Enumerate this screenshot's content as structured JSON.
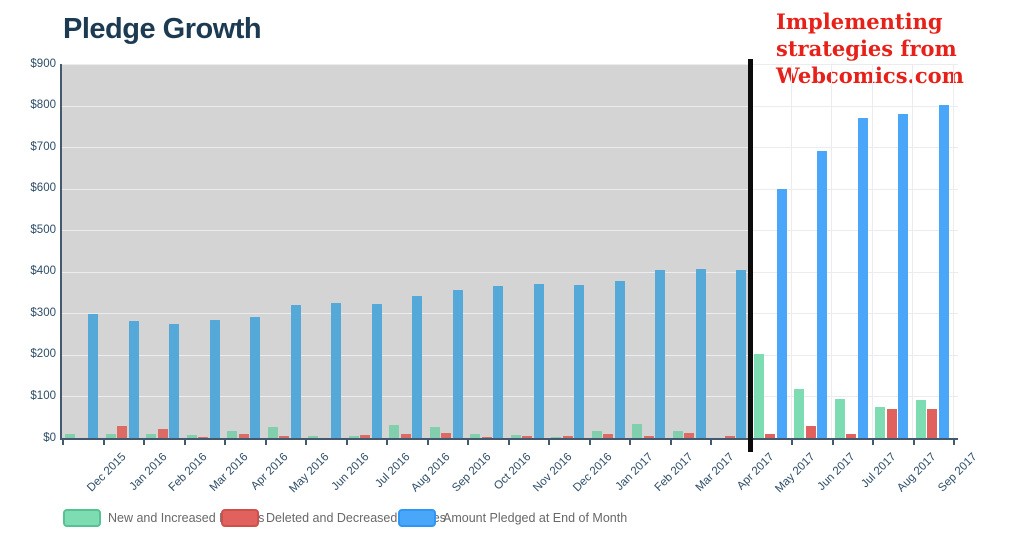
{
  "page": {
    "title": "Pledge Growth"
  },
  "annotation": {
    "lines": [
      "Implementing",
      "strategies from",
      "Webcomics.com"
    ],
    "color": "#e7211a"
  },
  "chart_data": {
    "type": "bar",
    "title": "Pledge Growth",
    "categories": [
      "Dec 2015",
      "Jan 2016",
      "Feb 2016",
      "Mar 2016",
      "Apr 2016",
      "May 2016",
      "Jun 2016",
      "Jul 2016",
      "Aug 2016",
      "Sep 2016",
      "Oct 2016",
      "Nov 2016",
      "Dec 2016",
      "Jan 2017",
      "Feb 2017",
      "Mar 2017",
      "Apr 2017",
      "May 2017",
      "Jun 2017",
      "Jul 2017",
      "Aug 2017",
      "Sep 2017"
    ],
    "series": [
      {
        "name": "New and Increased Pledges",
        "color": "#7edcb2",
        "muted_color": "#82cfad",
        "swatch_border": "#56c193",
        "values": [
          12,
          12,
          12,
          9,
          19,
          28,
          5,
          5,
          33,
          27,
          11,
          8,
          4,
          18,
          35,
          17,
          2,
          203,
          118,
          96,
          77,
          92
        ]
      },
      {
        "name": "Deleted and Decreased Pledges",
        "color": "#e0615d",
        "muted_color": "#db6b64",
        "swatch_border": "#cf4f4b",
        "values": [
          0,
          30,
          22,
          4,
          10,
          5,
          1,
          8,
          10,
          13,
          3,
          6,
          6,
          10,
          7,
          13,
          6,
          12,
          30,
          10,
          70,
          70
        ]
      },
      {
        "name": "Amount Pledged at End of Month",
        "color": "#4aa6f8",
        "muted_color": "#54a9d9",
        "swatch_border": "#2e96f5",
        "values": [
          300,
          282,
          276,
          284,
          293,
          321,
          326,
          323,
          344,
          358,
          368,
          372,
          370,
          380,
          406,
          409,
          406,
          600,
          691,
          772,
          781,
          803
        ]
      }
    ],
    "xlabel": "",
    "ylabel": "",
    "ylim": [
      0,
      900
    ],
    "y_tick_step": 100,
    "y_tick_prefix": "$",
    "grid": true,
    "legend_position": "bottom",
    "shaded_region_categories": "Dec 2015 through Apr 2017",
    "cutoff_after_category": "Apr 2017"
  }
}
